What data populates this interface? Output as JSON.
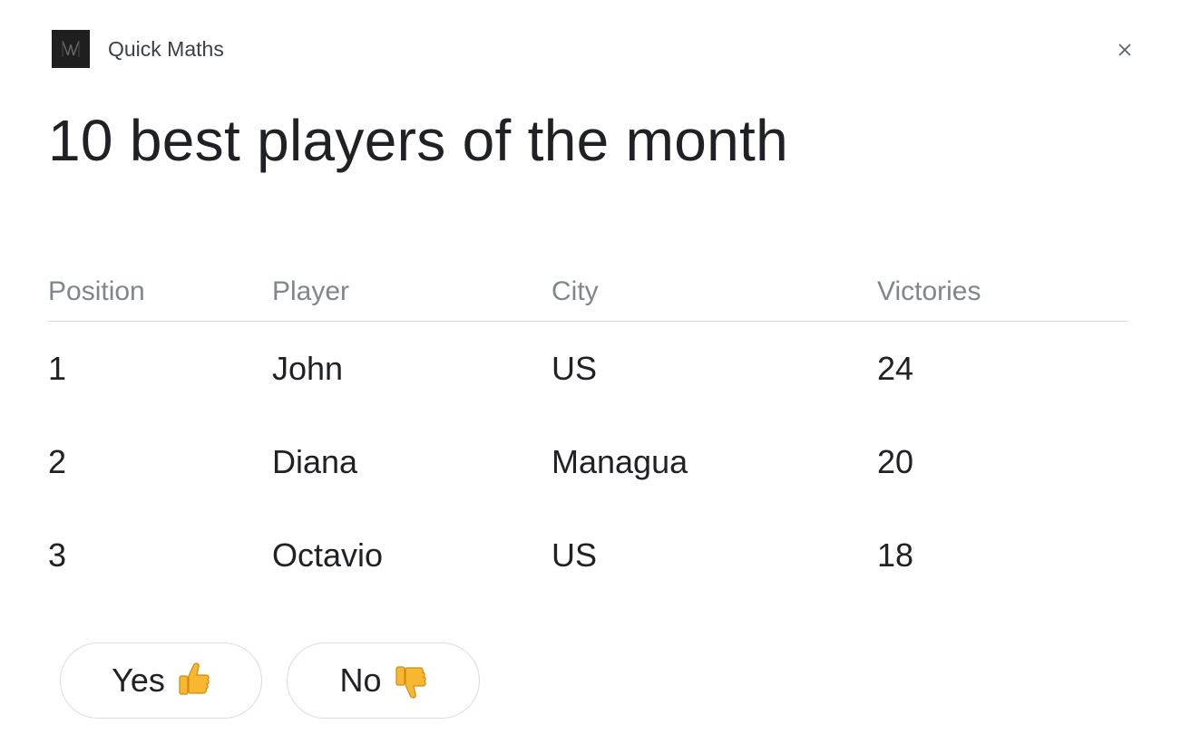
{
  "header": {
    "app_name": "Quick Maths",
    "logo_icon": "app-logo-icon",
    "close_icon": "close-icon"
  },
  "title": "10 best players of the month",
  "table": {
    "columns": [
      "Position",
      "Player",
      "City",
      "Victories"
    ],
    "rows": [
      {
        "position": "1",
        "player": "John",
        "city": "US",
        "victories": "24"
      },
      {
        "position": "2",
        "player": "Diana",
        "city": "Managua",
        "victories": "20"
      },
      {
        "position": "3",
        "player": "Octavio",
        "city": "US",
        "victories": "18"
      }
    ]
  },
  "feedback": {
    "yes_label": "Yes",
    "yes_icon": "thumbs-up-icon",
    "no_label": "No",
    "no_icon": "thumbs-down-icon"
  },
  "colors": {
    "title": "#202124",
    "header_text": "#80868b",
    "divider": "#d5d7da",
    "button_border": "#dadce0",
    "emoji": "#f6b93b"
  }
}
